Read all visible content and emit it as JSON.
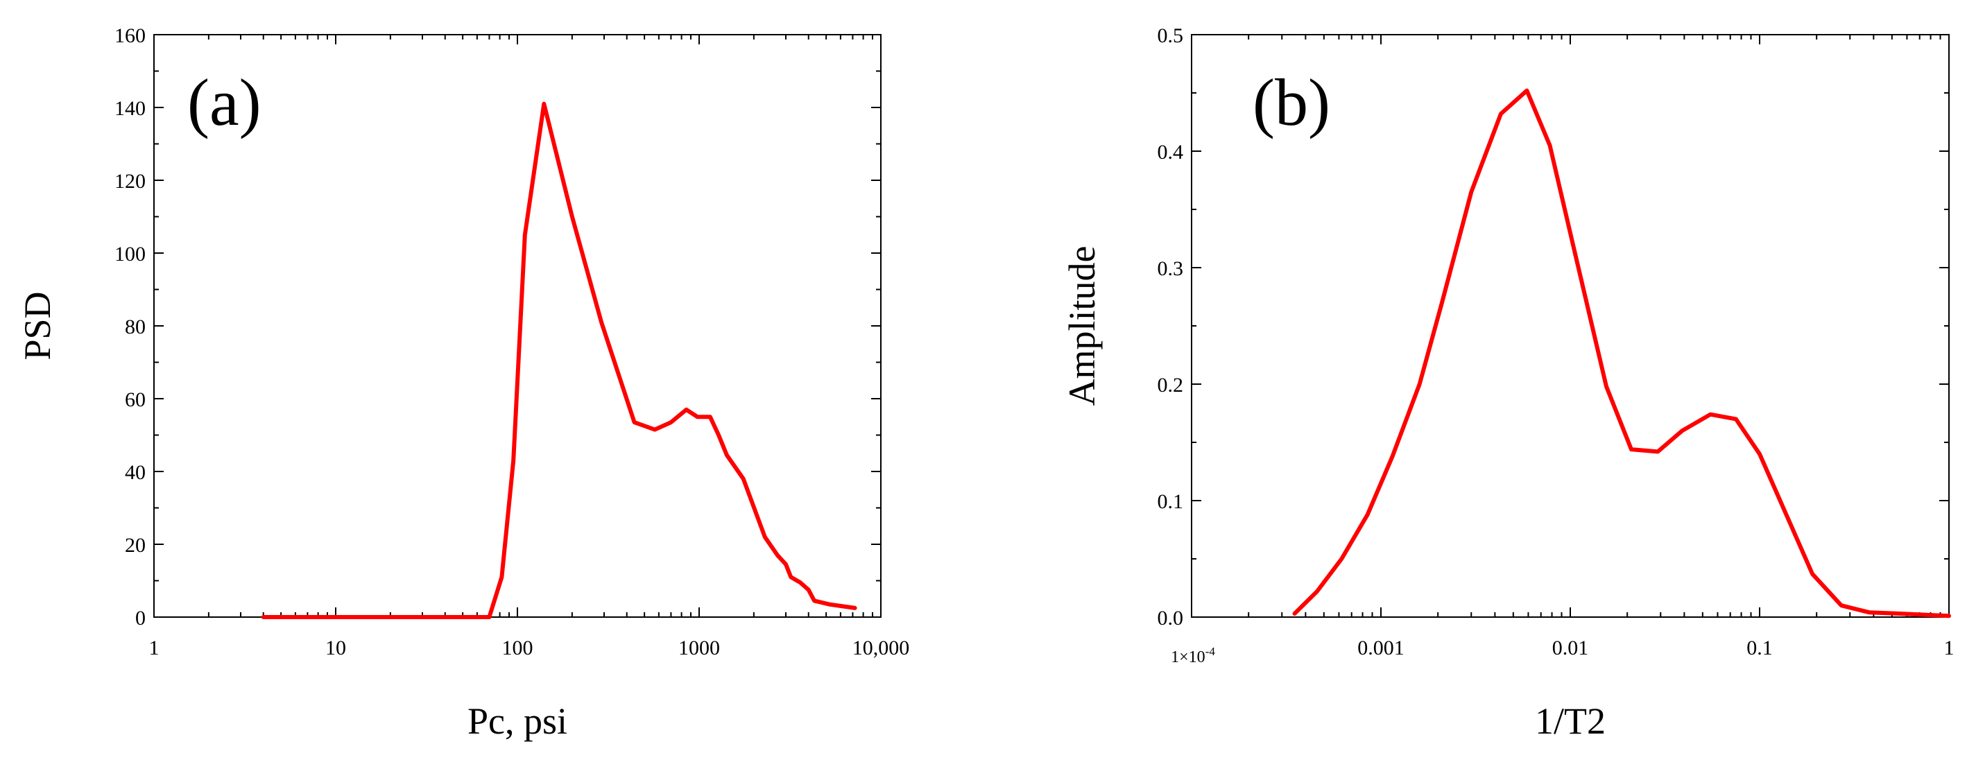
{
  "colors": {
    "series": "#ff0000",
    "axis": "#000000",
    "background": "#ffffff"
  },
  "chart_data": [
    {
      "id": "a",
      "type": "line",
      "panel_label": "(a)",
      "xlabel": "Pc, psi",
      "ylabel": "PSD",
      "xscale": "log",
      "xlim": [
        1,
        10000
      ],
      "ylim": [
        0,
        160
      ],
      "grid": false,
      "x_ticks": [
        1,
        10,
        100,
        1000,
        10000
      ],
      "x_tick_labels": [
        "1",
        "10",
        "100",
        "1000",
        "10,000"
      ],
      "y_ticks": [
        0,
        20,
        40,
        60,
        80,
        100,
        120,
        140,
        160
      ],
      "y_tick_labels": [
        "0",
        "20",
        "40",
        "60",
        "80",
        "100",
        "120",
        "140",
        "160"
      ],
      "series": [
        {
          "name": "PSD",
          "color": "#ff0000",
          "x": [
            4,
            10,
            30,
            70,
            82,
            95,
            110,
            140,
            200,
            290,
            440,
            570,
            700,
            850,
            980,
            1150,
            1280,
            1420,
            1750,
            2300,
            2700,
            3000,
            3200,
            3600,
            4000,
            4300,
            5200,
            7200
          ],
          "y": [
            0,
            0,
            0,
            0,
            11,
            43,
            105,
            141,
            110,
            81,
            53.5,
            51.5,
            53.5,
            57,
            55,
            55,
            50,
            44.5,
            38,
            22,
            17,
            14.5,
            11,
            9.5,
            7.5,
            4.5,
            3.5,
            2.5
          ]
        }
      ]
    },
    {
      "id": "b",
      "type": "line",
      "panel_label": "(b)",
      "xlabel": "1/T2",
      "ylabel": "Amplitude",
      "xscale": "log",
      "xlim": [
        0.0001,
        1
      ],
      "ylim": [
        0,
        0.5
      ],
      "grid": false,
      "x_ticks": [
        0.001,
        0.01,
        0.1,
        1
      ],
      "x_tick_labels": [
        "0.001",
        "0.01",
        "0.1",
        "1"
      ],
      "x_min_label": "1×10",
      "x_min_label_exponent": "-4",
      "y_ticks": [
        0,
        0.1,
        0.2,
        0.3,
        0.4,
        0.5
      ],
      "y_tick_labels": [
        "0.0",
        "0.1",
        "0.2",
        "0.3",
        "0.4",
        "0.5"
      ],
      "series": [
        {
          "name": "Amplitude",
          "color": "#ff0000",
          "x": [
            0.00035,
            0.00046,
            0.00062,
            0.00085,
            0.00115,
            0.0016,
            0.0021,
            0.003,
            0.0043,
            0.0059,
            0.0078,
            0.0105,
            0.0155,
            0.021,
            0.029,
            0.039,
            0.055,
            0.075,
            0.1,
            0.19,
            0.27,
            0.38,
            0.55,
            1.0
          ],
          "y": [
            0.003,
            0.022,
            0.05,
            0.088,
            0.138,
            0.2,
            0.27,
            0.365,
            0.432,
            0.452,
            0.405,
            0.315,
            0.198,
            0.144,
            0.142,
            0.16,
            0.174,
            0.17,
            0.14,
            0.037,
            0.01,
            0.004,
            0.003,
            0.001
          ]
        }
      ]
    }
  ]
}
